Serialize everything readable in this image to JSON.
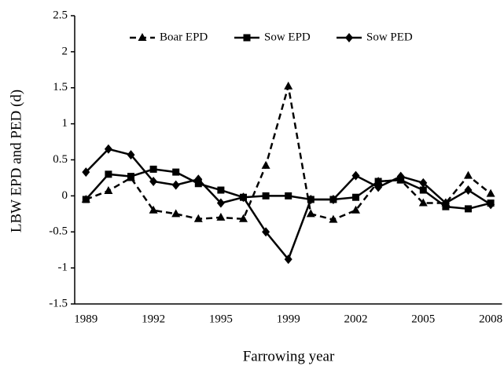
{
  "chart_data": {
    "type": "line",
    "xlabel": "Farrowing year",
    "ylabel": "LBW EPD and PED (d)",
    "categories": [
      "1989",
      null,
      null,
      "1992",
      null,
      null,
      "1995",
      null,
      null,
      "1999",
      null,
      null,
      "2002",
      null,
      null,
      "2005",
      null,
      null,
      "2008"
    ],
    "ylim": [
      -1.5,
      2.5
    ],
    "yticks": [
      -1.5,
      -1,
      -0.5,
      0,
      0.5,
      1,
      1.5,
      2,
      2.5
    ],
    "grid": false,
    "legend": "top",
    "series": [
      {
        "name": "Boar EPD",
        "color": "#000000",
        "marker": "triangle",
        "dashed": true,
        "values": [
          -0.05,
          0.07,
          0.25,
          -0.2,
          -0.25,
          -0.32,
          -0.3,
          -0.32,
          0.42,
          1.52,
          -0.25,
          -0.33,
          -0.2,
          0.2,
          0.22,
          -0.1,
          -0.1,
          0.28,
          0.03
        ]
      },
      {
        "name": "Sow EPD",
        "color": "#000000",
        "marker": "square",
        "dashed": false,
        "values": [
          -0.05,
          0.3,
          0.27,
          0.37,
          0.33,
          0.17,
          0.08,
          -0.02,
          0,
          0,
          -0.05,
          -0.05,
          -0.02,
          0.2,
          0.22,
          0.08,
          -0.15,
          -0.18,
          -0.1
        ]
      },
      {
        "name": "Sow PED",
        "color": "#000000",
        "marker": "diamond",
        "dashed": false,
        "values": [
          0.33,
          0.65,
          0.57,
          0.2,
          0.15,
          0.23,
          -0.1,
          -0.02,
          -0.5,
          -0.88,
          -0.05,
          -0.05,
          0.28,
          0.12,
          0.27,
          0.18,
          -0.1,
          0.08,
          -0.12
        ]
      }
    ]
  }
}
